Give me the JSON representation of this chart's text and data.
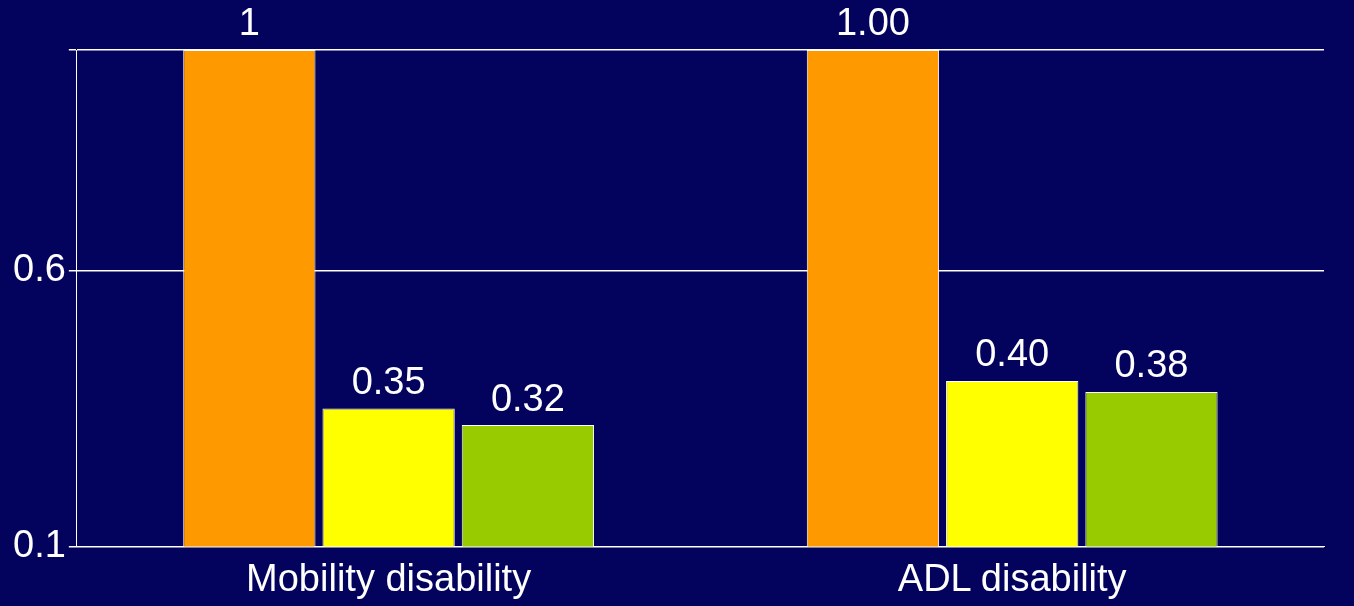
{
  "chart_data": {
    "type": "bar",
    "categories": [
      "Mobility disability",
      "ADL disability"
    ],
    "series": [
      {
        "color": "#ff9900",
        "values": [
          1,
          1.0
        ],
        "value_labels": [
          "1",
          "1.00"
        ]
      },
      {
        "color": "#ffff00",
        "values": [
          0.35,
          0.4
        ],
        "value_labels": [
          "0.35",
          "0.40"
        ]
      },
      {
        "color": "#99cc00",
        "values": [
          0.32,
          0.38
        ],
        "value_labels": [
          "0.32",
          "0.38"
        ]
      }
    ],
    "ylim": [
      0.1,
      1.0
    ],
    "yticks": [
      0.1,
      0.6,
      {
        "value": 1.0,
        "label": null
      }
    ],
    "grid": "y",
    "legend": false
  }
}
